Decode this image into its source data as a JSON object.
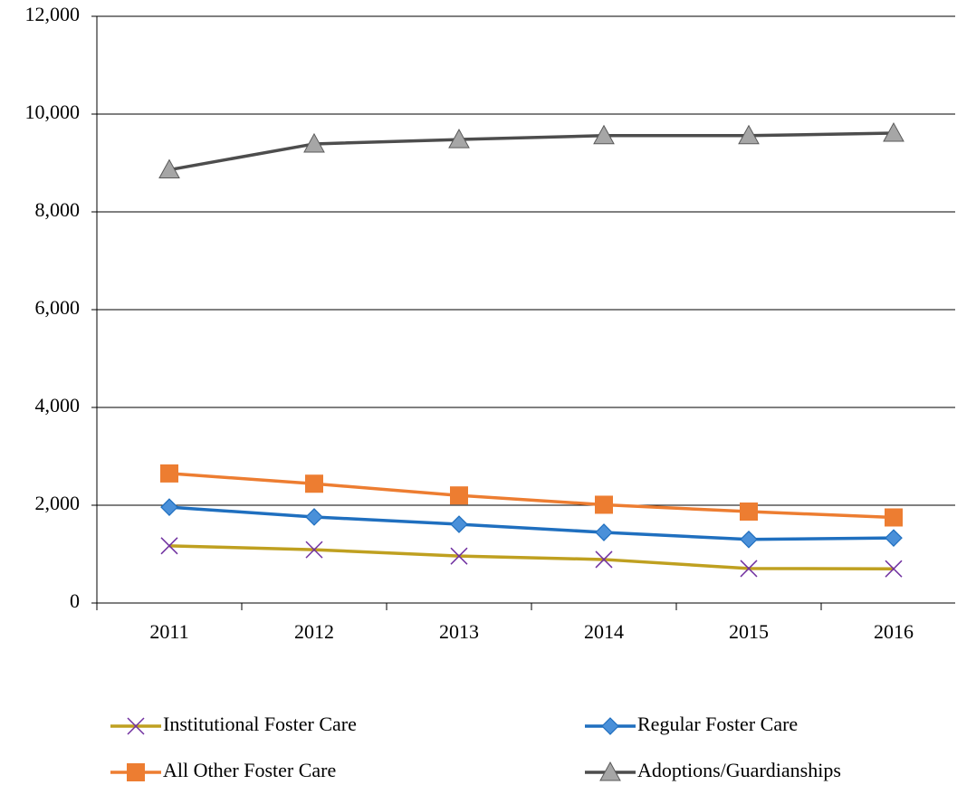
{
  "chart_data": {
    "type": "line",
    "categories": [
      "2011",
      "2012",
      "2013",
      "2014",
      "2015",
      "2016"
    ],
    "ylim": [
      0,
      12000
    ],
    "yticks": [
      0,
      {
        "value": 2000,
        "label": "2,000"
      },
      {
        "value": 4000,
        "label": "4,000"
      },
      {
        "value": 6000,
        "label": "6,000"
      },
      {
        "value": 8000,
        "label": "8,000"
      },
      {
        "value": 10000,
        "label": "10,000"
      },
      {
        "value": 12000,
        "label": "12,000"
      }
    ],
    "grid": true,
    "legend": "bottom",
    "series": [
      {
        "name": "Institutional Foster Care",
        "color": "#bfa020",
        "marker": "x",
        "marker_color": "#7030a0",
        "values": [
          1170,
          1090,
          960,
          890,
          705,
          700
        ]
      },
      {
        "name": "Regular Foster Care",
        "color": "#1f6fbf",
        "marker": "diamond",
        "marker_color": "#4a90d9",
        "values": [
          1960,
          1760,
          1610,
          1445,
          1300,
          1330
        ]
      },
      {
        "name": "All Other Foster Care",
        "color": "#ed7d31",
        "marker": "square",
        "marker_color": "#ed7d31",
        "values": [
          2650,
          2440,
          2200,
          2010,
          1870,
          1750
        ]
      },
      {
        "name": "Adoptions/Guardianships",
        "color": "#4d4d4d",
        "marker": "triangle",
        "marker_color": "#a6a6a6",
        "values": [
          8860,
          9390,
          9480,
          9560,
          9560,
          9610
        ]
      }
    ]
  }
}
